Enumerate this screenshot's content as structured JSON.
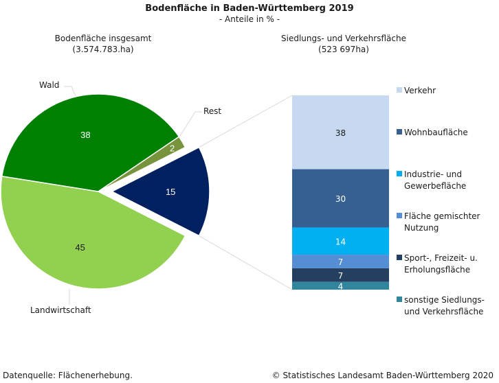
{
  "chart_data": [
    {
      "type": "pie",
      "title": "Bodenfläche in Baden-Württemberg 2019",
      "subtitle": "- Anteile in % -",
      "header": "Bodenfläche insgesamt",
      "header_value": "(3.574.783.ha)",
      "unit": "%",
      "slices": [
        {
          "name": "Siedlungs- und Verkehrsfläche",
          "value": 15,
          "label": "15",
          "color": "#002060",
          "label_color": "#ffffff",
          "exploded": true,
          "category_label": ""
        },
        {
          "name": "Landwirtschaft",
          "value": 45,
          "label": "45",
          "color": "#92d050",
          "label_color": "#1a1a1a",
          "exploded": false,
          "category_label": "Landwirtschaft"
        },
        {
          "name": "Wald",
          "value": 38,
          "label": "38",
          "color": "#008000",
          "label_color": "#ffffff",
          "exploded": false,
          "category_label": "Wald"
        },
        {
          "name": "Rest",
          "value": 2,
          "label": "2",
          "color": "#77933c",
          "label_color": "#ffffff",
          "exploded": false,
          "category_label": "Rest"
        }
      ]
    },
    {
      "type": "bar",
      "stacked": true,
      "header": "Siedlungs- und Verkehrsfläche",
      "header_value": "(523 697ha)",
      "unit": "%",
      "legend_position": "right",
      "series": [
        {
          "name": "Verkehr",
          "value": 38,
          "label": "38",
          "color": "#c6d9f1",
          "label_color": "#1a1a1a"
        },
        {
          "name": "Wohnbaufläche",
          "value": 30,
          "label": "30",
          "color": "#366092",
          "label_color": "#ffffff"
        },
        {
          "name": "Industrie- und Gewerbefläche",
          "value": 14,
          "label": "14",
          "color": "#00b0f0",
          "label_color": "#ffffff"
        },
        {
          "name": "Fläche gemischter Nutzung",
          "value": 7,
          "label": "7",
          "color": "#558ed5",
          "label_color": "#ffffff"
        },
        {
          "name": "Sport-, Freizeit- u. Erholungsfläche",
          "value": 7,
          "label": "7",
          "color": "#243f60",
          "label_color": "#ffffff"
        },
        {
          "name": "sonstige Siedlungs- und Verkehrsfläche",
          "value": 4,
          "label": "4",
          "color": "#31859c",
          "label_color": "#ffffff"
        }
      ]
    }
  ],
  "legend": [
    {
      "line1": "Verkehr",
      "line2": ""
    },
    {
      "line1": "Wohnbaufläche",
      "line2": ""
    },
    {
      "line1": "Industrie- und",
      "line2": "Gewerbefläche"
    },
    {
      "line1": "Fläche gemischter",
      "line2": "Nutzung"
    },
    {
      "line1": "Sport-, Freizeit- u.",
      "line2": "Erholungsfläche"
    },
    {
      "line1": "sonstige Siedlungs-",
      "line2": "und Verkehrsfläche"
    }
  ],
  "footer": {
    "source": "Datenquelle:  Flächenerhebung.",
    "copyright": "© Statistisches Landesamt  Baden-Württemberg  2020"
  }
}
